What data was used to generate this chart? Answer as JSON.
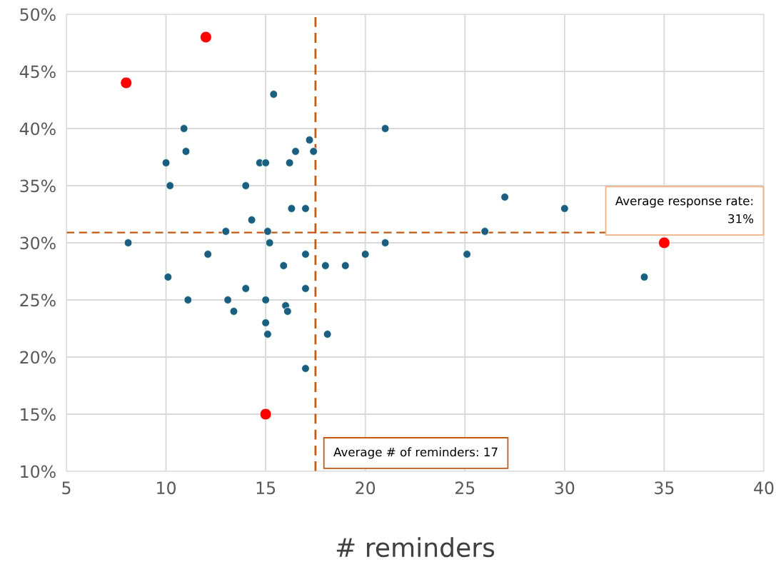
{
  "chart_data": {
    "type": "scatter",
    "xlabel": "# reminders",
    "xlim": [
      5,
      40
    ],
    "xticks": [
      5,
      10,
      15,
      20,
      25,
      30,
      35,
      40
    ],
    "ylim": [
      10,
      50
    ],
    "yticks": [
      {
        "value": 10,
        "label": "10%"
      },
      {
        "value": 15,
        "label": "15%"
      },
      {
        "value": 20,
        "label": "20%"
      },
      {
        "value": 25,
        "label": "25%"
      },
      {
        "value": 30,
        "label": "30%"
      },
      {
        "value": 35,
        "label": "35%"
      },
      {
        "value": 40,
        "label": "40%"
      },
      {
        "value": 45,
        "label": "45%"
      },
      {
        "value": 50,
        "label": "50%"
      }
    ],
    "grid": true,
    "legend": false,
    "marker": "circle",
    "series": [
      {
        "color": "#1b5f80",
        "x": [
          8.1,
          10,
          10.2,
          10.1,
          10.9,
          11,
          11.1,
          12.1,
          13,
          13.1,
          13.4,
          14,
          14,
          14.3,
          14.7,
          15,
          15.4,
          15.1,
          15.2,
          15,
          15,
          15.1,
          15.9,
          16,
          16.1,
          16.2,
          16.3,
          16.5,
          17,
          17.2,
          17.4,
          17,
          17,
          17,
          18,
          18.1,
          19,
          20,
          21,
          21,
          25.1,
          26,
          27,
          30,
          34
        ],
        "values": [
          30,
          37,
          35,
          27,
          40,
          38,
          25,
          29,
          31,
          25,
          24,
          35,
          26,
          32,
          37,
          37,
          43,
          31,
          30,
          25,
          23,
          22,
          28,
          24.5,
          24,
          37,
          33,
          38,
          33,
          39,
          38,
          29,
          26,
          19,
          28,
          22,
          28,
          29,
          40,
          30,
          29,
          31,
          34,
          33,
          27
        ]
      },
      {
        "color": "#ff0000",
        "x": [
          8,
          12,
          15,
          35
        ],
        "values": [
          44,
          48,
          15,
          30
        ]
      }
    ],
    "ref_lines": [
      {
        "axis": "x",
        "value": 17.5,
        "label": "Average # of reminders: 17",
        "color": "#c55a11",
        "line_style": "dashed"
      },
      {
        "axis": "y",
        "value": 30.9,
        "label": "Average response rate:\n31%",
        "color": "#c55a11",
        "line_style": "dashed"
      }
    ]
  }
}
